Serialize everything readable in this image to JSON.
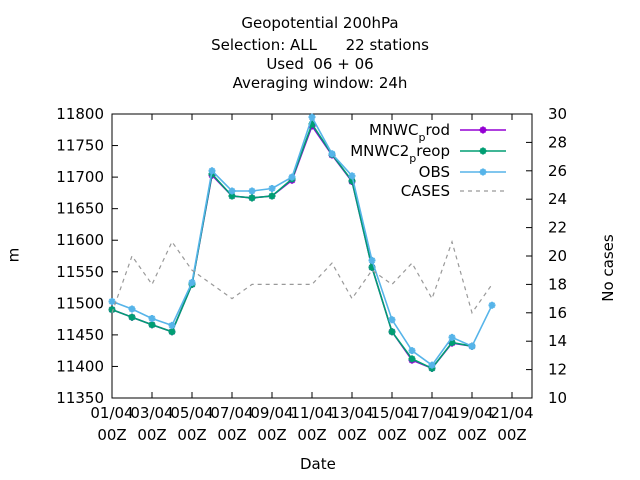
{
  "chart_data": {
    "type": "line",
    "title_lines": [
      "Geopotential 200hPa",
      "Selection: ALL      22 stations",
      "Used  06 + 06",
      "Averaging window: 24h"
    ],
    "xlabel": "Date",
    "ylabel": "m",
    "y2label": "No cases",
    "xlim": [
      0,
      21
    ],
    "ylim": [
      11350,
      11800
    ],
    "y2lim": [
      10,
      30
    ],
    "x_ticks": [
      {
        "x": 0,
        "line1": "01/04",
        "line2": "00Z"
      },
      {
        "x": 2,
        "line1": "03/04",
        "line2": "00Z"
      },
      {
        "x": 4,
        "line1": "05/04",
        "line2": "00Z"
      },
      {
        "x": 6,
        "line1": "07/04",
        "line2": "00Z"
      },
      {
        "x": 8,
        "line1": "09/04",
        "line2": "00Z"
      },
      {
        "x": 10,
        "line1": "11/04",
        "line2": "00Z"
      },
      {
        "x": 12,
        "line1": "13/04",
        "line2": "00Z"
      },
      {
        "x": 14,
        "line1": "15/04",
        "line2": "00Z"
      },
      {
        "x": 16,
        "line1": "17/04",
        "line2": "00Z"
      },
      {
        "x": 18,
        "line1": "19/04",
        "line2": "00Z"
      },
      {
        "x": 20,
        "line1": "21/04",
        "line2": "00Z"
      }
    ],
    "y_ticks": [
      11350,
      11400,
      11450,
      11500,
      11550,
      11600,
      11650,
      11700,
      11750,
      11800
    ],
    "y2_ticks": [
      10,
      12,
      14,
      16,
      18,
      20,
      22,
      24,
      26,
      28,
      30
    ],
    "legend_position": "top-right",
    "x": [
      0,
      1,
      2,
      3,
      4,
      5,
      6,
      7,
      8,
      9,
      10,
      11,
      12,
      13,
      14,
      15,
      16,
      17,
      18,
      19,
      20
    ],
    "series": [
      {
        "name": "MNWC_prod",
        "legend_main": "MNWC",
        "legend_sub": "p",
        "legend_rest": "rod",
        "color": "#9400d3",
        "axis": "y",
        "dash": "",
        "values": [
          11490,
          11478,
          11466,
          11455,
          11530,
          11703,
          11670,
          11667,
          11670,
          11695,
          11781,
          11735,
          11693,
          11557,
          11455,
          11410,
          11397,
          11437,
          11432,
          null,
          null
        ]
      },
      {
        "name": "MNWC2_preop",
        "legend_main": "MNWC2",
        "legend_sub": "p",
        "legend_rest": "reop",
        "color": "#009e73",
        "axis": "y",
        "dash": "",
        "values": [
          11490,
          11478,
          11466,
          11455,
          11530,
          11705,
          11670,
          11667,
          11670,
          11697,
          11784,
          11736,
          11694,
          11557,
          11455,
          11412,
          11397,
          11438,
          11432,
          null,
          null
        ]
      },
      {
        "name": "OBS",
        "legend_main": "OBS",
        "legend_sub": "",
        "legend_rest": "",
        "color": "#56b4e9",
        "axis": "y",
        "dash": "",
        "values": [
          11503,
          11491,
          11476,
          11465,
          11533,
          11710,
          11678,
          11678,
          11682,
          11700,
          11795,
          11737,
          11702,
          11568,
          11474,
          11425,
          11402,
          11446,
          11432,
          11497,
          null
        ]
      },
      {
        "name": "CASES",
        "legend_main": "CASES",
        "legend_sub": "",
        "legend_rest": "",
        "color": "#999999",
        "axis": "y2",
        "dash": "4,4",
        "values": [
          16,
          20,
          18,
          21,
          19,
          18,
          17,
          18,
          18,
          18,
          18,
          19.5,
          17,
          19,
          18,
          19.5,
          17,
          21,
          16,
          18,
          null
        ]
      }
    ]
  }
}
